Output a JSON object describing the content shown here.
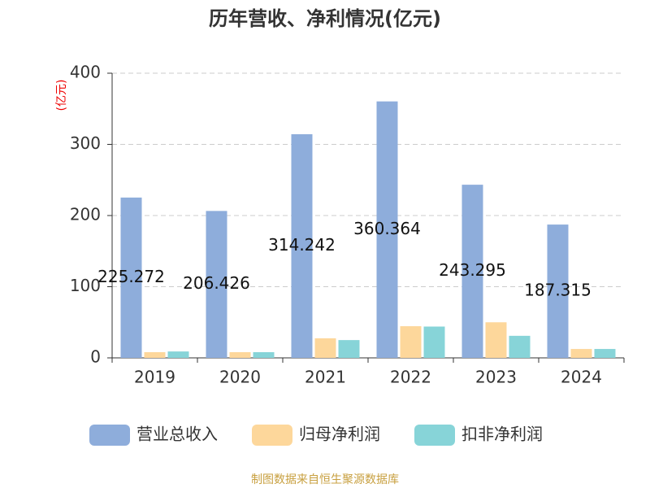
{
  "chart_data": {
    "type": "bar",
    "title": "历年营收、净利情况(亿元)",
    "y_label": "(亿元)",
    "categories": [
      "2019",
      "2020",
      "2021",
      "2022",
      "2023",
      "2024"
    ],
    "series": [
      {
        "name": "营业总收入",
        "color": "#8eaddb",
        "values": [
          225.272,
          206.426,
          314.242,
          360.364,
          243.295,
          187.315
        ],
        "show_labels": true
      },
      {
        "name": "归母净利润",
        "color": "#fdd79b",
        "values": [
          8,
          8,
          27.5,
          44.5,
          50,
          12.5
        ],
        "show_labels": false
      },
      {
        "name": "扣非净利润",
        "color": "#87d4d8",
        "values": [
          9,
          8,
          25,
          44,
          31,
          12.5
        ],
        "show_labels": false
      }
    ],
    "ylim": [
      0,
      400
    ],
    "yticks": [
      0,
      100,
      200,
      300,
      400
    ],
    "grid": true,
    "source": "制图数据来自恒生聚源数据库"
  }
}
